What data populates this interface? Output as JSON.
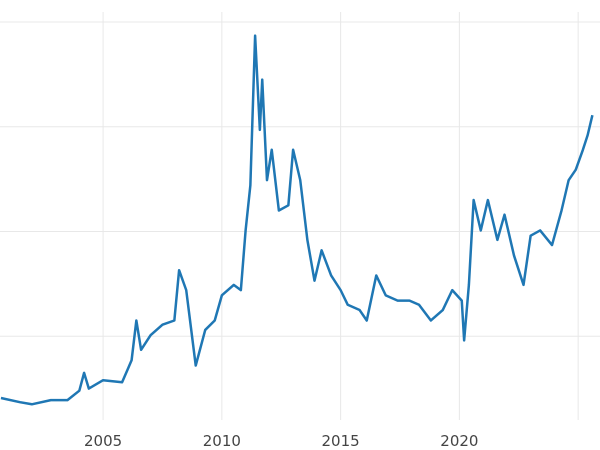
{
  "chart_data": {
    "type": "line",
    "x": [
      2000.7,
      2001.5,
      2002.0,
      2002.8,
      2003.5,
      2004.0,
      2004.2,
      2004.4,
      2005.0,
      2005.8,
      2006.2,
      2006.4,
      2006.6,
      2007.0,
      2007.5,
      2008.0,
      2008.2,
      2008.5,
      2008.9,
      2009.3,
      2009.7,
      2010.0,
      2010.5,
      2010.8,
      2011.0,
      2011.2,
      2011.4,
      2011.6,
      2011.7,
      2011.9,
      2012.1,
      2012.4,
      2012.8,
      2013.0,
      2013.3,
      2013.6,
      2013.9,
      2014.2,
      2014.6,
      2015.0,
      2015.3,
      2015.8,
      2016.1,
      2016.5,
      2016.9,
      2017.4,
      2017.9,
      2018.3,
      2018.8,
      2019.3,
      2019.7,
      2020.1,
      2020.2,
      2020.4,
      2020.6,
      2020.9,
      2021.2,
      2021.6,
      2021.9,
      2022.3,
      2022.7,
      2023.0,
      2023.4,
      2023.9,
      2024.3,
      2024.6,
      2024.9,
      2025.2,
      2025.4,
      2025.6
    ],
    "series": [
      {
        "color": "#1f77b4",
        "values": [
          4.1,
          3.7,
          3.5,
          3.9,
          3.9,
          4.8,
          6.5,
          5.0,
          5.8,
          5.6,
          7.7,
          11.5,
          8.7,
          10.1,
          11.1,
          11.5,
          16.3,
          14.4,
          7.2,
          10.6,
          11.5,
          13.9,
          14.9,
          14.4,
          20.1,
          24.4,
          38.7,
          29.7,
          34.5,
          24.9,
          27.8,
          22.0,
          22.5,
          27.8,
          24.9,
          19.2,
          15.3,
          18.2,
          15.8,
          14.4,
          13.0,
          12.5,
          11.5,
          15.8,
          13.9,
          13.4,
          13.4,
          13.0,
          11.5,
          12.5,
          14.4,
          13.4,
          9.6,
          14.9,
          23.0,
          20.1,
          23.0,
          19.2,
          21.6,
          17.7,
          14.9,
          19.6,
          20.1,
          18.7,
          22.0,
          24.9,
          25.9,
          27.8,
          29.2,
          31.1
        ]
      }
    ],
    "xlim": [
      2000.66,
      2025.92
    ],
    "ylim": [
      2.0,
      42.1
    ],
    "xticks": [
      2005,
      2010,
      2015,
      2020
    ],
    "xgrid": [
      2005,
      2010,
      2015,
      2020,
      2025
    ],
    "ygrid": [
      10,
      20,
      30,
      40
    ]
  }
}
